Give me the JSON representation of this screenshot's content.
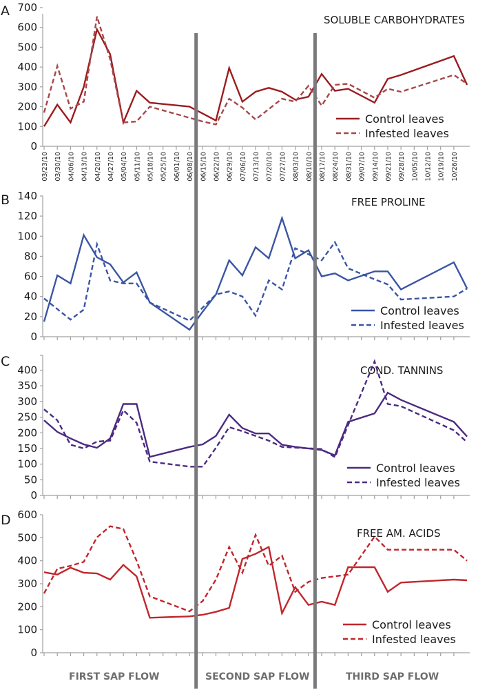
{
  "chart_data": [
    {
      "type": "line",
      "panel": "A",
      "title": "SOLUBLE CARBOHYDRATES",
      "ylim": [
        0,
        700
      ],
      "yticks": [
        0,
        100,
        200,
        300,
        400,
        500,
        600,
        700
      ],
      "color": "#9b1c1f",
      "infested_color": "#a6474a",
      "legend": [
        "Control leaves",
        "Infested leaves"
      ],
      "legend_position": "bottom-right",
      "series": [
        {
          "name": "Control leaves",
          "style": "solid",
          "points": [
            [
              0,
              100
            ],
            [
              1,
              210
            ],
            [
              2,
              120
            ],
            [
              3,
              300
            ],
            [
              4,
              590
            ],
            [
              5,
              465
            ],
            [
              6,
              120
            ],
            [
              7,
              280
            ],
            [
              8,
              220
            ],
            [
              11,
              200
            ],
            [
              12,
              165
            ],
            [
              13,
              130
            ],
            [
              14,
              395
            ],
            [
              15,
              225
            ],
            [
              16,
              275
            ],
            [
              17,
              295
            ],
            [
              18,
              275
            ],
            [
              19,
              235
            ],
            [
              20,
              250
            ],
            [
              21,
              365
            ],
            [
              22,
              280
            ],
            [
              23,
              290
            ],
            [
              25,
              220
            ],
            [
              26,
              340
            ],
            [
              27,
              360
            ],
            [
              31,
              455
            ],
            [
              32,
              310
            ]
          ]
        },
        {
          "name": "Infested leaves",
          "style": "dashed",
          "points": [
            [
              0,
              170
            ],
            [
              1,
              405
            ],
            [
              2,
              190
            ],
            [
              3,
              225
            ],
            [
              4,
              655
            ],
            [
              5,
              440
            ],
            [
              6,
              120
            ],
            [
              7,
              125
            ],
            [
              8,
              200
            ],
            [
              12,
              125
            ],
            [
              13,
              110
            ],
            [
              14,
              240
            ],
            [
              15,
              195
            ],
            [
              16,
              135
            ],
            [
              18,
              240
            ],
            [
              19,
              225
            ],
            [
              20,
              305
            ],
            [
              21,
              205
            ],
            [
              22,
              310
            ],
            [
              23,
              315
            ],
            [
              25,
              245
            ],
            [
              26,
              290
            ],
            [
              27,
              275
            ],
            [
              31,
              360
            ],
            [
              32,
              315
            ]
          ]
        }
      ]
    },
    {
      "type": "line",
      "panel": "B",
      "title": "FREE PROLINE",
      "ylim": [
        0,
        140
      ],
      "yticks": [
        0,
        20,
        40,
        60,
        80,
        100,
        120,
        140
      ],
      "color": "#3a55a4",
      "infested_color": "#3a55a4",
      "legend": [
        "Control leaves",
        "Infested leaves"
      ],
      "legend_position": "bottom-right",
      "series": [
        {
          "name": "Control leaves",
          "style": "solid",
          "points": [
            [
              0,
              15
            ],
            [
              1,
              61
            ],
            [
              2,
              53
            ],
            [
              3,
              101
            ],
            [
              4,
              79
            ],
            [
              5,
              72
            ],
            [
              6,
              54
            ],
            [
              7,
              64
            ],
            [
              8,
              34
            ],
            [
              11,
              7
            ],
            [
              12,
              25
            ],
            [
              13,
              42
            ],
            [
              14,
              76
            ],
            [
              15,
              61
            ],
            [
              16,
              89
            ],
            [
              17,
              78
            ],
            [
              18,
              118
            ],
            [
              19,
              78
            ],
            [
              20,
              86
            ],
            [
              21,
              60
            ],
            [
              22,
              63
            ],
            [
              23,
              56
            ],
            [
              25,
              65
            ],
            [
              26,
              65
            ],
            [
              27,
              47
            ],
            [
              31,
              74
            ],
            [
              32,
              48
            ]
          ]
        },
        {
          "name": "Infested leaves",
          "style": "dashed",
          "points": [
            [
              0,
              38
            ],
            [
              2,
              17
            ],
            [
              3,
              27
            ],
            [
              4,
              92
            ],
            [
              5,
              56
            ],
            [
              6,
              53
            ],
            [
              7,
              53
            ],
            [
              8,
              34
            ],
            [
              11,
              16
            ],
            [
              12,
              29
            ],
            [
              13,
              42
            ],
            [
              14,
              45
            ],
            [
              15,
              40
            ],
            [
              16,
              21
            ],
            [
              17,
              56
            ],
            [
              18,
              47
            ],
            [
              19,
              88
            ],
            [
              21,
              76
            ],
            [
              22,
              94
            ],
            [
              23,
              68
            ],
            [
              25,
              57
            ],
            [
              26,
              52
            ],
            [
              27,
              37
            ],
            [
              31,
              40
            ],
            [
              32,
              48
            ]
          ]
        }
      ]
    },
    {
      "type": "line",
      "panel": "C",
      "title": "COND. TANNINS",
      "ylim": [
        0,
        450
      ],
      "yticks": [
        0,
        50,
        100,
        150,
        200,
        250,
        300,
        350,
        400
      ],
      "color": "#4b2a82",
      "infested_color": "#4b2a82",
      "legend": [
        "Control leaves",
        "Infested leaves"
      ],
      "legend_position": "bottom-right",
      "series": [
        {
          "name": "Control leaves",
          "style": "solid",
          "points": [
            [
              0,
              240
            ],
            [
              1,
              203
            ],
            [
              2,
              182
            ],
            [
              3,
              163
            ],
            [
              4,
              152
            ],
            [
              5,
              182
            ],
            [
              6,
              292
            ],
            [
              7,
              292
            ],
            [
              8,
              123
            ],
            [
              11,
              155
            ],
            [
              12,
              163
            ],
            [
              13,
              190
            ],
            [
              14,
              258
            ],
            [
              15,
              215
            ],
            [
              16,
              198
            ],
            [
              17,
              198
            ],
            [
              18,
              162
            ],
            [
              19,
              155
            ],
            [
              21,
              145
            ],
            [
              22,
              128
            ],
            [
              23,
              235
            ],
            [
              25,
              262
            ],
            [
              26,
              328
            ],
            [
              27,
              305
            ],
            [
              31,
              235
            ],
            [
              32,
              188
            ]
          ]
        },
        {
          "name": "Infested leaves",
          "style": "dashed",
          "points": [
            [
              0,
              275
            ],
            [
              1,
              240
            ],
            [
              2,
              162
            ],
            [
              3,
              150
            ],
            [
              4,
              172
            ],
            [
              5,
              175
            ],
            [
              6,
              272
            ],
            [
              7,
              232
            ],
            [
              8,
              108
            ],
            [
              11,
              92
            ],
            [
              12,
              92
            ],
            [
              13,
              152
            ],
            [
              14,
              218
            ],
            [
              15,
              205
            ],
            [
              17,
              175
            ],
            [
              18,
              155
            ],
            [
              21,
              148
            ],
            [
              22,
              122
            ],
            [
              23,
              225
            ],
            [
              25,
              428
            ],
            [
              26,
              292
            ],
            [
              27,
              285
            ],
            [
              31,
              208
            ],
            [
              32,
              170
            ]
          ]
        }
      ]
    },
    {
      "type": "line",
      "panel": "D",
      "title": "FREE AM. ACIDS",
      "ylim": [
        0,
        600
      ],
      "yticks": [
        0,
        100,
        200,
        300,
        400,
        500,
        600
      ],
      "color": "#c0272d",
      "infested_color": "#c0272d",
      "legend": [
        "Control leaves",
        "Infested leaves"
      ],
      "legend_position": "bottom-right",
      "series": [
        {
          "name": "Control leaves",
          "style": "solid",
          "points": [
            [
              0,
              350
            ],
            [
              1,
              340
            ],
            [
              2,
              370
            ],
            [
              3,
              348
            ],
            [
              4,
              345
            ],
            [
              5,
              318
            ],
            [
              6,
              382
            ],
            [
              7,
              332
            ],
            [
              8,
              152
            ],
            [
              11,
              158
            ],
            [
              12,
              165
            ],
            [
              13,
              178
            ],
            [
              14,
              195
            ],
            [
              15,
              408
            ],
            [
              16,
              430
            ],
            [
              17,
              460
            ],
            [
              18,
              172
            ],
            [
              19,
              285
            ],
            [
              20,
              208
            ],
            [
              21,
              222
            ],
            [
              22,
              208
            ],
            [
              23,
              372
            ],
            [
              25,
              372
            ],
            [
              26,
              265
            ],
            [
              27,
              305
            ],
            [
              31,
              318
            ],
            [
              32,
              315
            ]
          ]
        },
        {
          "name": "Infested leaves",
          "style": "dashed",
          "points": [
            [
              0,
              258
            ],
            [
              1,
              365
            ],
            [
              2,
              378
            ],
            [
              3,
              395
            ],
            [
              4,
              502
            ],
            [
              5,
              550
            ],
            [
              6,
              538
            ],
            [
              7,
              400
            ],
            [
              8,
              245
            ],
            [
              11,
              180
            ],
            [
              12,
              225
            ],
            [
              13,
              318
            ],
            [
              14,
              460
            ],
            [
              15,
              348
            ],
            [
              16,
              512
            ],
            [
              17,
              378
            ],
            [
              18,
              422
            ],
            [
              19,
              265
            ],
            [
              20,
              308
            ],
            [
              21,
              325
            ],
            [
              23,
              340
            ],
            [
              25,
              505
            ],
            [
              26,
              448
            ],
            [
              27,
              448
            ],
            [
              31,
              448
            ],
            [
              32,
              400
            ]
          ]
        }
      ]
    }
  ],
  "x_dates": [
    "03/23/10",
    "03/30/10",
    "04/06/10",
    "04/13/10",
    "04/20/10",
    "04/27/10",
    "05/04/10",
    "05/11/10",
    "05/18/10",
    "05/25/10",
    "06/01/10",
    "06/08/10",
    "06/15/10",
    "06/22/10",
    "06/29/10",
    "07/06/10",
    "07/13/10",
    "07/20/10",
    "07/27/10",
    "08/03/10",
    "08/10/10",
    "08/17/10",
    "08/24/10",
    "08/31/10",
    "09/07/10",
    "09/14/10",
    "09/21/10",
    "09/28/10",
    "10/05/10",
    "10/12/10",
    "10/19/10",
    "10/26/10"
  ],
  "sap_flow_dividers": {
    "after_dates": [
      "06/08/10",
      "08/10/10"
    ],
    "color": "#7a7a7c"
  },
  "sap_flow_labels": [
    "FIRST SAP FLOW",
    "SECOND SAP FLOW",
    "THIRD SAP FLOW"
  ]
}
